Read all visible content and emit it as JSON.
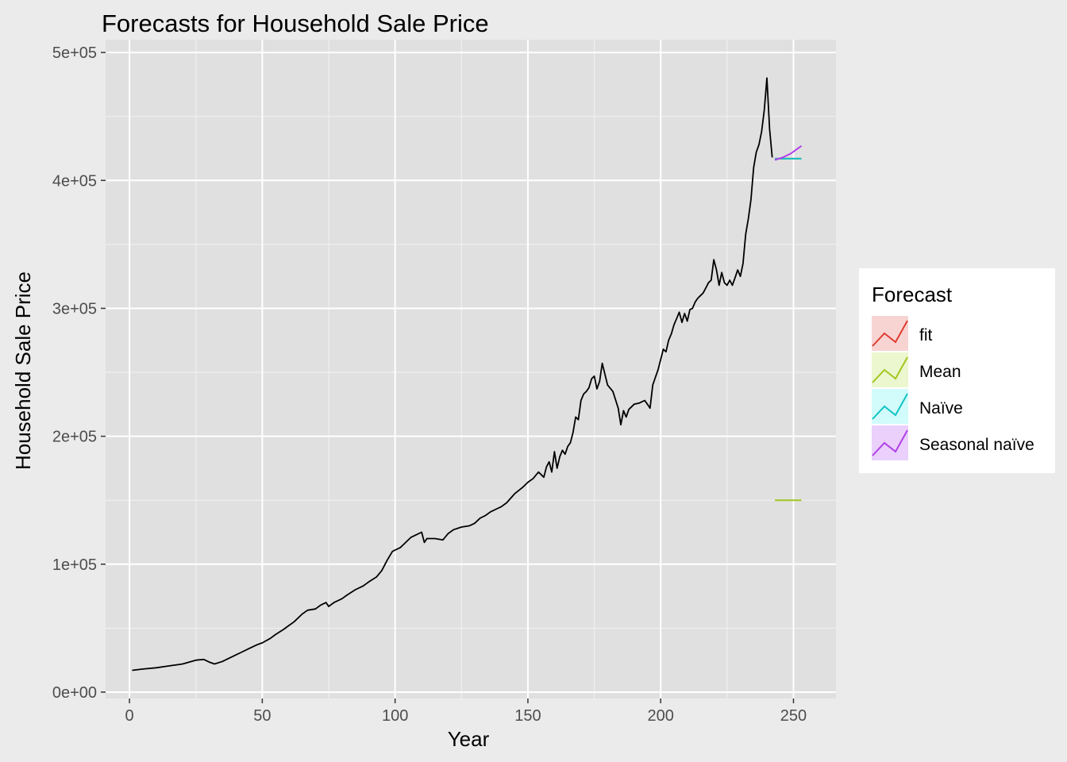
{
  "chart_data": {
    "type": "line",
    "title": "Forecasts for Household Sale Price",
    "xlabel": "Year",
    "ylabel": "Household Sale Price",
    "xlim": [
      -9,
      266
    ],
    "ylim": [
      -5000,
      510000
    ],
    "xticks": [
      0,
      50,
      100,
      150,
      200,
      250
    ],
    "xtick_labels": [
      "0",
      "50",
      "100",
      "150",
      "200",
      "250"
    ],
    "yticks": [
      0,
      100000,
      200000,
      300000,
      400000,
      500000
    ],
    "ytick_labels": [
      "0e+00",
      "1e+05",
      "2e+05",
      "3e+05",
      "4e+05",
      "5e+05"
    ],
    "grid": true,
    "legend": {
      "title": "Forecast",
      "position": "right"
    },
    "history": {
      "color": "#000000",
      "x": [
        1,
        5,
        10,
        15,
        20,
        25,
        28,
        30,
        32,
        35,
        38,
        40,
        42,
        45,
        48,
        50,
        53,
        55,
        58,
        60,
        62,
        65,
        67,
        70,
        72,
        74,
        75,
        77,
        80,
        82,
        85,
        88,
        90,
        93,
        95,
        97,
        99,
        100,
        102,
        104,
        106,
        108,
        110,
        111,
        112,
        115,
        118,
        120,
        122,
        125,
        128,
        130,
        132,
        134,
        136,
        138,
        140,
        142,
        145,
        148,
        150,
        152,
        154,
        156,
        157,
        158,
        159,
        160,
        161,
        162,
        163,
        164,
        165,
        166,
        167,
        168,
        169,
        170,
        171,
        172,
        173,
        174,
        175,
        176,
        177,
        178,
        180,
        182,
        184,
        185,
        186,
        187,
        188,
        190,
        192,
        194,
        195,
        196,
        197,
        198,
        199,
        200,
        201,
        202,
        203,
        204,
        205,
        206,
        207,
        208,
        209,
        210,
        211,
        212,
        213,
        214,
        215,
        216,
        217,
        218,
        219,
        220,
        221,
        222,
        223,
        224,
        225,
        226,
        227,
        228,
        229,
        230,
        231,
        232,
        233,
        234,
        235,
        236,
        237,
        238,
        239,
        240,
        241,
        242
      ],
      "y": [
        17000,
        18000,
        19000,
        20500,
        22000,
        25000,
        25500,
        23500,
        22000,
        24000,
        27000,
        29000,
        31000,
        34000,
        37000,
        38500,
        42000,
        45000,
        49000,
        52000,
        55000,
        61000,
        64000,
        65000,
        68000,
        70000,
        67000,
        70000,
        73000,
        76000,
        80000,
        83000,
        86000,
        90000,
        95000,
        103000,
        110000,
        111000,
        113000,
        117000,
        121000,
        123000,
        125000,
        117000,
        120000,
        120000,
        119000,
        124000,
        127000,
        129000,
        130000,
        132000,
        136000,
        138000,
        141000,
        143000,
        145000,
        148000,
        155000,
        160000,
        164000,
        167000,
        172000,
        168000,
        176000,
        180000,
        172000,
        188000,
        175000,
        184000,
        189000,
        186000,
        192000,
        195000,
        203000,
        215000,
        213000,
        228000,
        233000,
        235000,
        238000,
        245000,
        247000,
        237000,
        243000,
        257000,
        240000,
        235000,
        222000,
        209000,
        220000,
        215000,
        221000,
        225000,
        226000,
        228000,
        225000,
        222000,
        240000,
        246000,
        252000,
        260000,
        268000,
        266000,
        275000,
        280000,
        287000,
        292000,
        297000,
        289000,
        296000,
        290000,
        299000,
        300000,
        305000,
        308000,
        310000,
        312000,
        316000,
        320000,
        322000,
        338000,
        330000,
        318000,
        328000,
        320000,
        318000,
        322000,
        318000,
        324000,
        330000,
        325000,
        335000,
        358000,
        370000,
        385000,
        410000,
        422000,
        428000,
        438000,
        455000,
        480000,
        440000,
        418000
      ]
    },
    "series": [
      {
        "name": "fit",
        "color": "#e03c31",
        "x": [
          243,
          253
        ],
        "y": [
          417000,
          417000
        ]
      },
      {
        "name": "Mean",
        "color": "#a3c61e",
        "x": [
          243,
          253
        ],
        "y": [
          150000,
          150000
        ]
      },
      {
        "name": "Naïve",
        "color": "#10c4c4",
        "x": [
          243,
          253
        ],
        "y": [
          417000,
          417000
        ]
      },
      {
        "name": "Seasonal naïve",
        "color": "#b040e8",
        "x": [
          243,
          246,
          249,
          253
        ],
        "y": [
          416000,
          418000,
          421000,
          427000
        ]
      }
    ]
  }
}
